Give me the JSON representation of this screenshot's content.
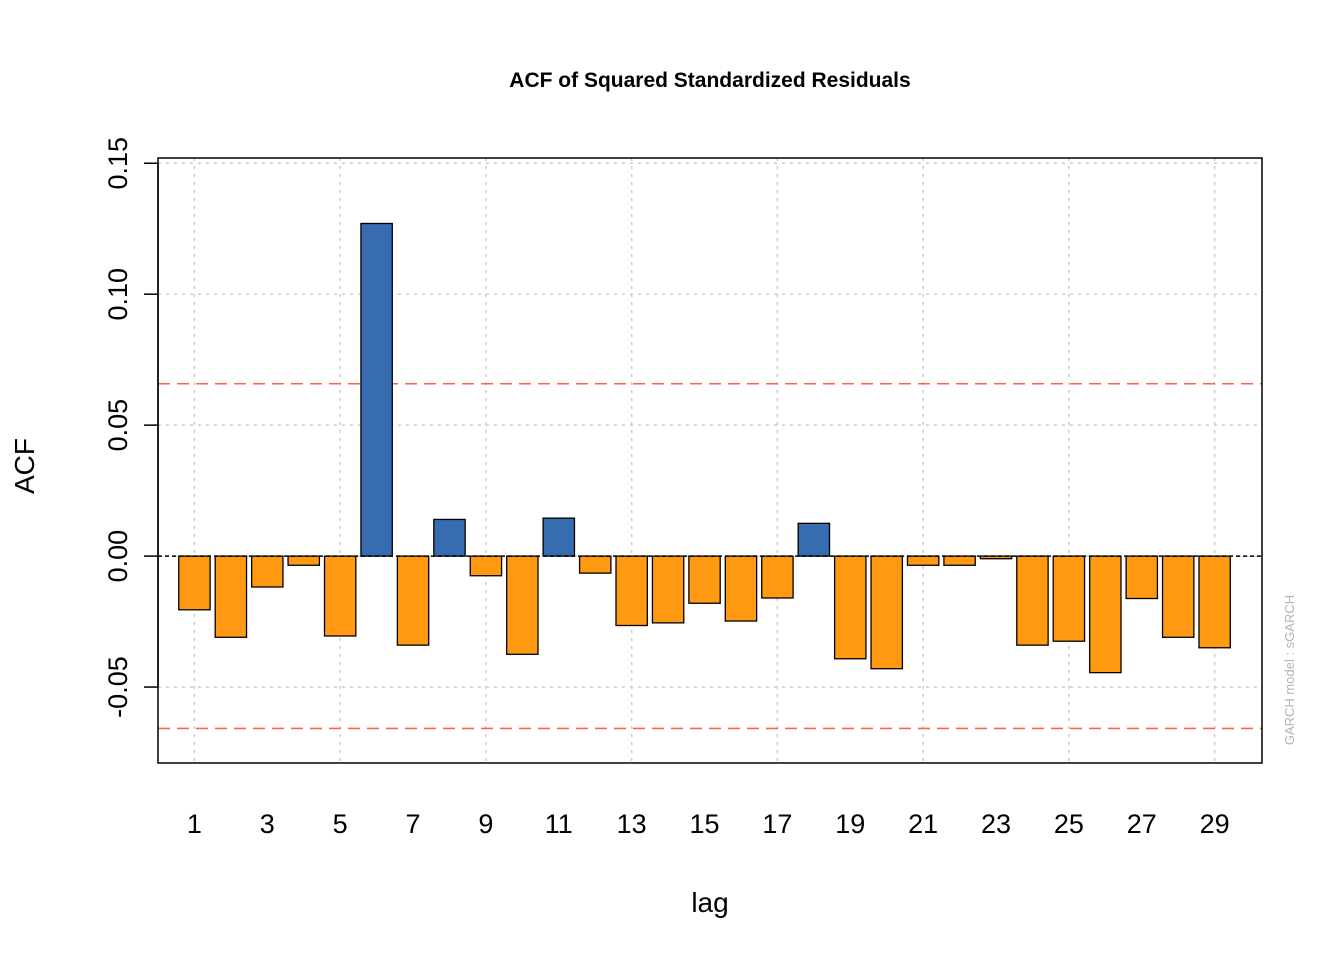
{
  "chart_data": {
    "type": "bar",
    "title": "ACF of Squared Standardized Residuals",
    "xlabel": "lag",
    "ylabel": "ACF",
    "side_note": "GARCH model :  sGARCH",
    "lags": [
      1,
      2,
      3,
      4,
      5,
      6,
      7,
      8,
      9,
      10,
      11,
      12,
      13,
      14,
      15,
      16,
      17,
      18,
      19,
      20,
      21,
      22,
      23,
      24,
      25,
      26,
      27,
      28,
      29
    ],
    "values": [
      -0.0205,
      -0.031,
      -0.0118,
      -0.0035,
      -0.0305,
      0.127,
      -0.034,
      0.014,
      -0.0075,
      -0.0375,
      0.0145,
      -0.0065,
      -0.0265,
      -0.0255,
      -0.018,
      -0.0248,
      -0.016,
      0.0125,
      -0.0392,
      -0.043,
      -0.0035,
      -0.0035,
      -0.001,
      -0.034,
      -0.0325,
      -0.0445,
      -0.0162,
      -0.031,
      -0.035
    ],
    "x_tick_labels": [
      "1",
      "3",
      "5",
      "7",
      "9",
      "11",
      "13",
      "15",
      "17",
      "19",
      "21",
      "23",
      "25",
      "27",
      "29"
    ],
    "y_ticks": [
      -0.05,
      0.0,
      0.05,
      0.1,
      0.15
    ],
    "y_tick_labels": [
      "-0.05",
      "0.00",
      "0.05",
      "0.10",
      "0.15"
    ],
    "ylim": [
      -0.079,
      0.152
    ],
    "xlim": [
      0.0,
      30.3
    ],
    "confidence_bound": 0.0658,
    "grid": true,
    "colors": {
      "positive": "#386CB0",
      "negative": "#FF9912",
      "bound": "#FF6347",
      "grid": "#cccccc",
      "zero_line": "#000000",
      "note": "#b3b3b3"
    }
  }
}
